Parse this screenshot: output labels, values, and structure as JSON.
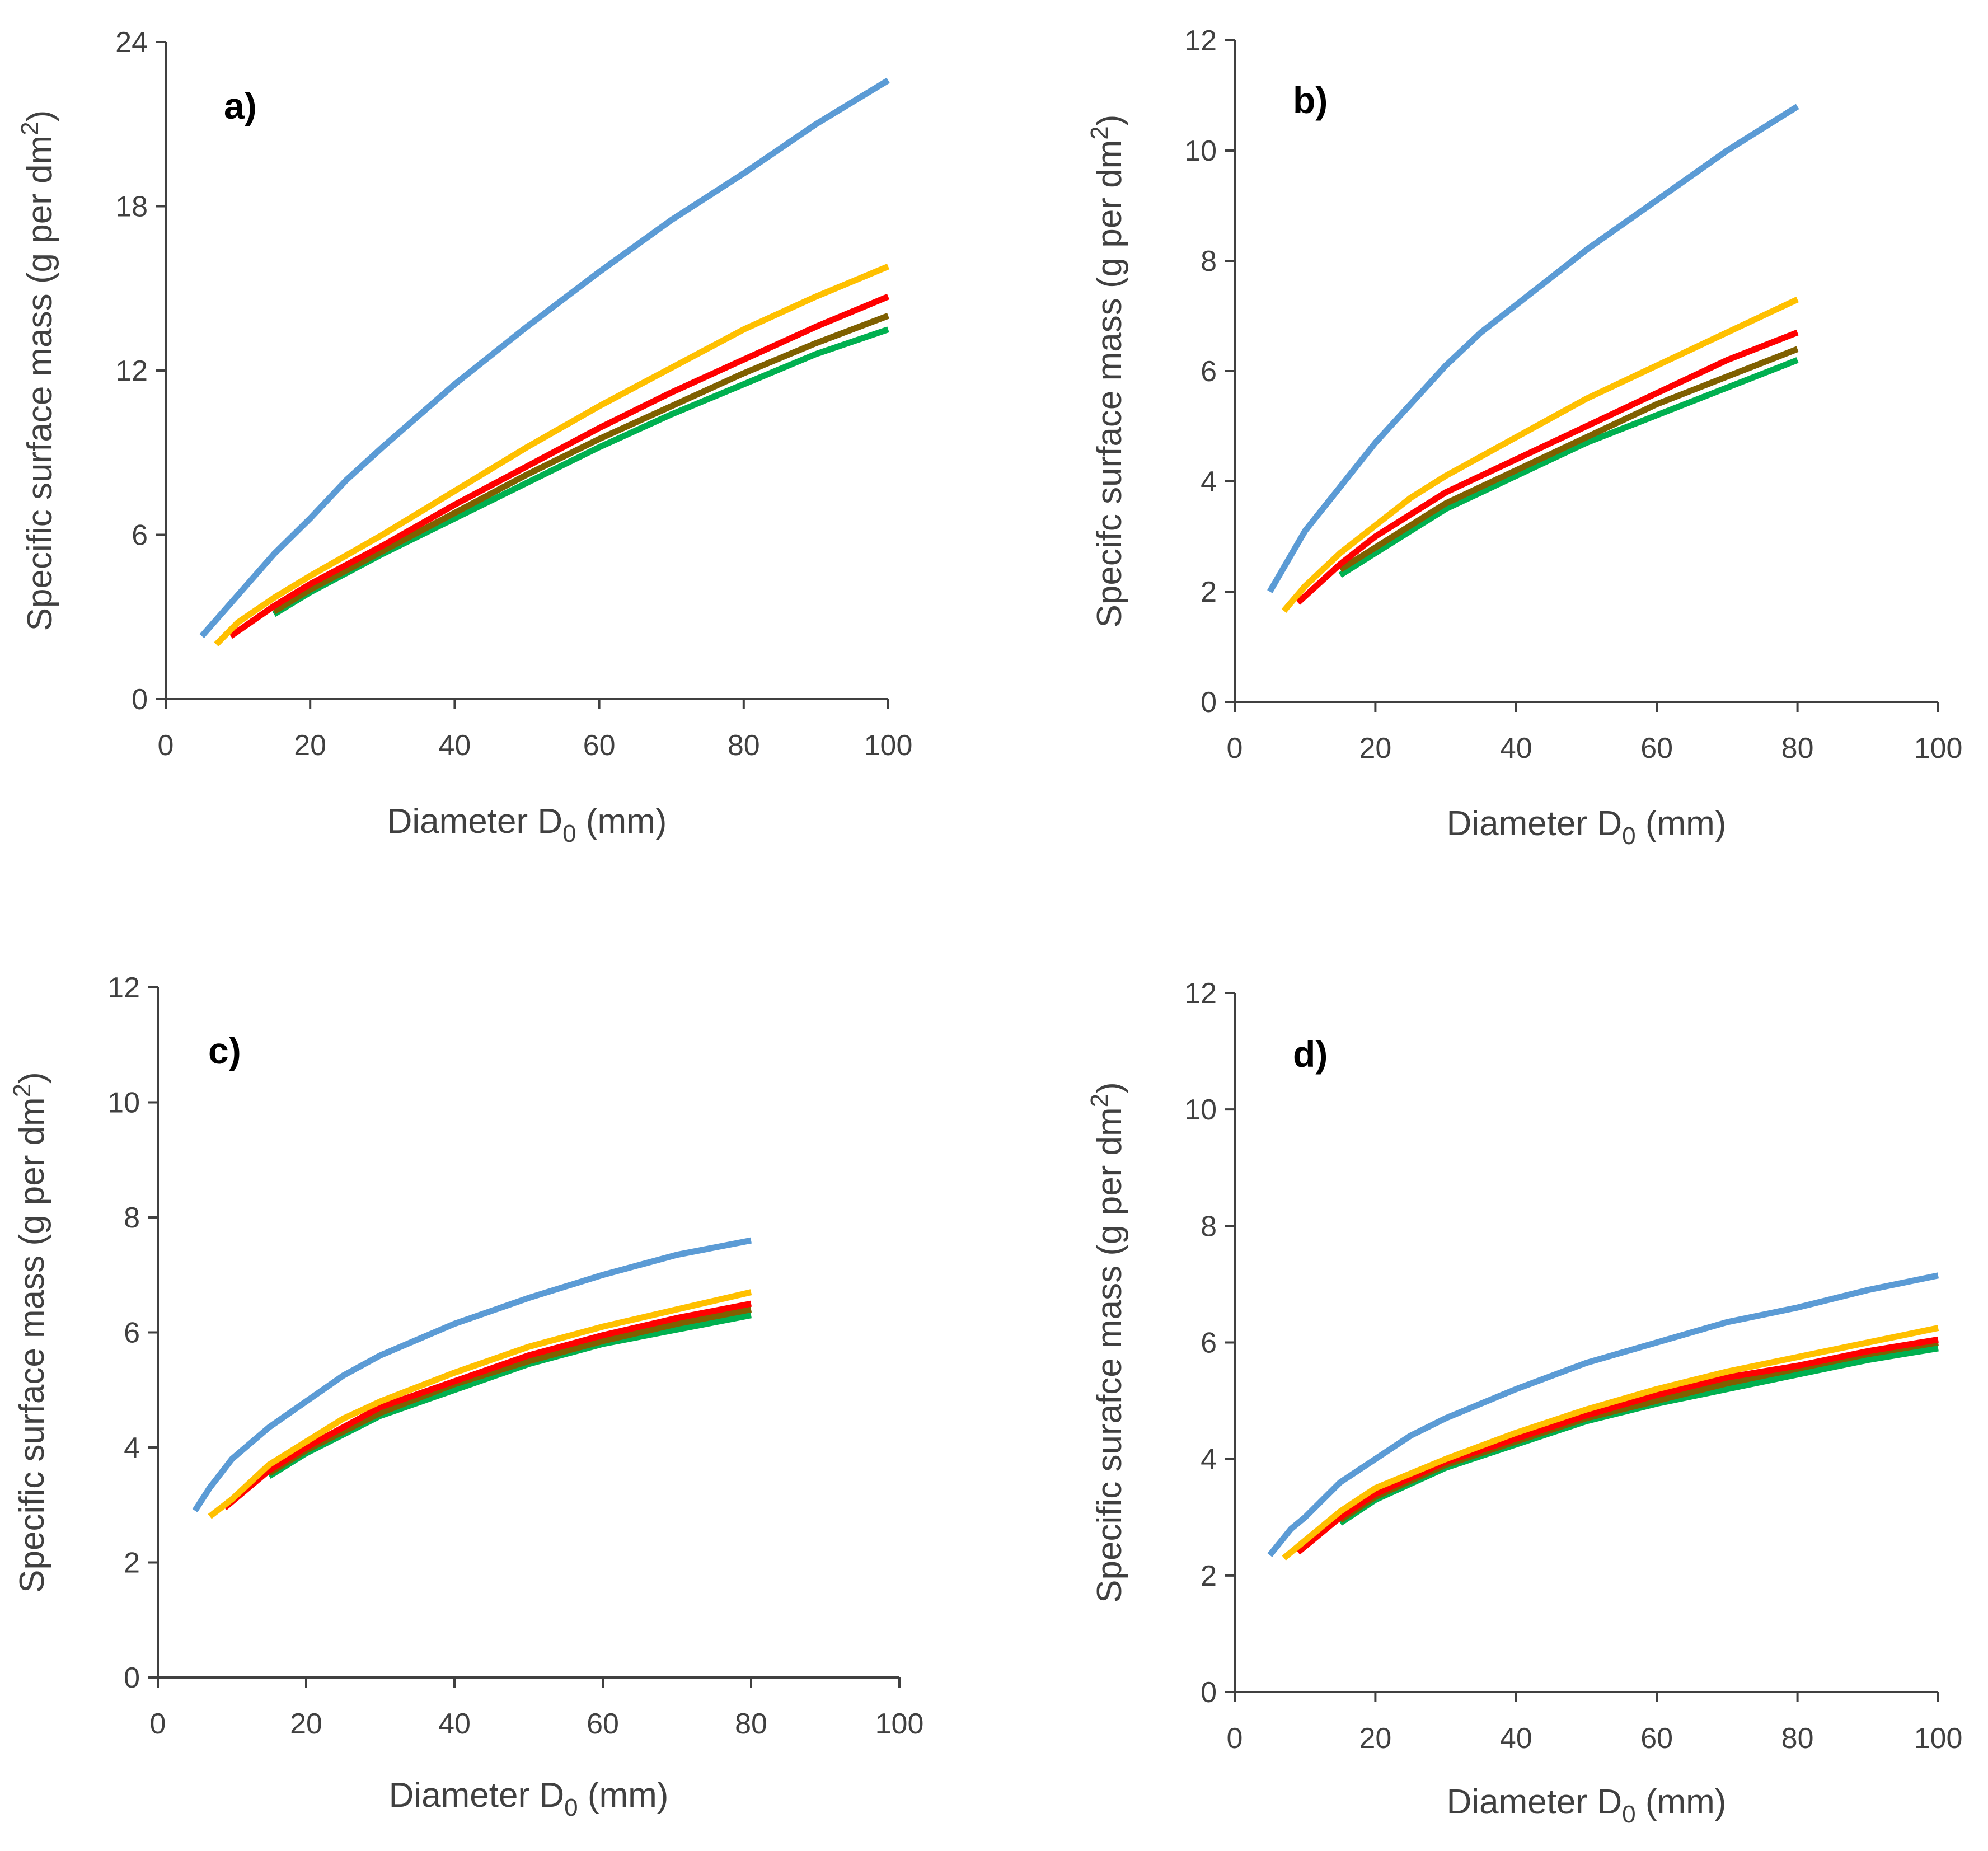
{
  "colors": {
    "blue": "#5b9bd5",
    "yellow": "#ffc000",
    "red": "#ff0000",
    "brown": "#7f6000",
    "green": "#00b050",
    "axis": "#404040"
  },
  "chart_data": [
    {
      "type": "line",
      "panel_label": "a)",
      "xlabel_main": "Diameter D",
      "xlabel_sub": "0",
      "xlabel_unit": " (mm)",
      "ylabel_main": "Specific surface  mass (g per dm",
      "ylabel_sup": "2",
      "ylabel_end": ")",
      "xlim": [
        0,
        100
      ],
      "ylim": [
        0,
        24
      ],
      "xticks": [
        0,
        20,
        40,
        60,
        80,
        100
      ],
      "yticks": [
        0,
        6,
        12,
        18,
        24
      ],
      "series": [
        {
          "name": "blue",
          "color": "#5b9bd5",
          "x": [
            5,
            10,
            15,
            20,
            25,
            30,
            40,
            50,
            60,
            70,
            80,
            90,
            100
          ],
          "y": [
            2.3,
            3.8,
            5.3,
            6.6,
            8.0,
            9.2,
            11.5,
            13.6,
            15.6,
            17.5,
            19.2,
            21.0,
            22.6
          ]
        },
        {
          "name": "yellow",
          "color": "#ffc000",
          "x": [
            7,
            10,
            15,
            20,
            30,
            40,
            50,
            60,
            70,
            80,
            90,
            100
          ],
          "y": [
            2.0,
            2.8,
            3.7,
            4.5,
            6.0,
            7.6,
            9.2,
            10.7,
            12.1,
            13.5,
            14.7,
            15.8
          ]
        },
        {
          "name": "red",
          "color": "#ff0000",
          "x": [
            9,
            15,
            20,
            30,
            40,
            50,
            60,
            70,
            80,
            90,
            100
          ],
          "y": [
            2.3,
            3.4,
            4.2,
            5.6,
            7.1,
            8.5,
            9.9,
            11.2,
            12.4,
            13.6,
            14.7
          ]
        },
        {
          "name": "brown",
          "color": "#7f6000",
          "x": [
            15,
            20,
            30,
            40,
            50,
            60,
            70,
            80,
            90,
            100
          ],
          "y": [
            3.2,
            4.0,
            5.4,
            6.8,
            8.2,
            9.5,
            10.7,
            11.9,
            13.0,
            14.0
          ]
        },
        {
          "name": "green",
          "color": "#00b050",
          "x": [
            15,
            20,
            30,
            40,
            50,
            60,
            70,
            80,
            90,
            100
          ],
          "y": [
            3.1,
            3.9,
            5.3,
            6.6,
            7.9,
            9.2,
            10.4,
            11.5,
            12.6,
            13.5
          ]
        }
      ]
    },
    {
      "type": "line",
      "panel_label": "b)",
      "xlabel_main": "Diameter D",
      "xlabel_sub": "0",
      "xlabel_unit": " (mm)",
      "ylabel_main": "Specifc surface  mass (g per dm",
      "ylabel_sup": "2",
      "ylabel_end": ")",
      "xlim": [
        0,
        100
      ],
      "ylim": [
        0,
        12
      ],
      "xticks": [
        0,
        20,
        40,
        60,
        80,
        100
      ],
      "yticks": [
        0,
        2,
        4,
        6,
        8,
        10,
        12
      ],
      "series": [
        {
          "name": "blue",
          "color": "#5b9bd5",
          "x": [
            5,
            10,
            15,
            20,
            25,
            30,
            35,
            40,
            50,
            60,
            70,
            80
          ],
          "y": [
            2.0,
            3.1,
            3.9,
            4.7,
            5.4,
            6.1,
            6.7,
            7.2,
            8.2,
            9.1,
            10.0,
            10.8
          ]
        },
        {
          "name": "yellow",
          "color": "#ffc000",
          "x": [
            7,
            10,
            15,
            20,
            25,
            30,
            40,
            50,
            60,
            70,
            80
          ],
          "y": [
            1.65,
            2.1,
            2.7,
            3.2,
            3.7,
            4.1,
            4.8,
            5.5,
            6.1,
            6.7,
            7.3
          ]
        },
        {
          "name": "red",
          "color": "#ff0000",
          "x": [
            9,
            15,
            20,
            30,
            40,
            50,
            60,
            70,
            80
          ],
          "y": [
            1.8,
            2.5,
            3.0,
            3.8,
            4.4,
            5.0,
            5.6,
            6.2,
            6.7
          ]
        },
        {
          "name": "brown",
          "color": "#7f6000",
          "x": [
            15,
            20,
            30,
            40,
            50,
            60,
            70,
            80
          ],
          "y": [
            2.4,
            2.8,
            3.6,
            4.2,
            4.8,
            5.4,
            5.9,
            6.4
          ]
        },
        {
          "name": "green",
          "color": "#00b050",
          "x": [
            15,
            20,
            30,
            40,
            50,
            60,
            70,
            80
          ],
          "y": [
            2.3,
            2.7,
            3.5,
            4.1,
            4.7,
            5.2,
            5.7,
            6.2
          ]
        }
      ]
    },
    {
      "type": "line",
      "panel_label": "c)",
      "xlabel_main": "Diameter D",
      "xlabel_sub": "0",
      "xlabel_unit": " (mm)",
      "ylabel_main": "Specific surface  mass (g per dm",
      "ylabel_sup": "2",
      "ylabel_end": ")",
      "xlim": [
        0,
        100
      ],
      "ylim": [
        0,
        12
      ],
      "xticks": [
        0,
        20,
        40,
        60,
        80,
        100
      ],
      "yticks": [
        0,
        2,
        4,
        6,
        8,
        10,
        12
      ],
      "series": [
        {
          "name": "blue",
          "color": "#5b9bd5",
          "x": [
            5,
            7,
            10,
            15,
            20,
            25,
            30,
            40,
            50,
            60,
            70,
            80
          ],
          "y": [
            2.9,
            3.3,
            3.8,
            4.35,
            4.8,
            5.25,
            5.6,
            6.15,
            6.6,
            7.0,
            7.35,
            7.6
          ]
        },
        {
          "name": "yellow",
          "color": "#ffc000",
          "x": [
            7,
            10,
            15,
            20,
            25,
            30,
            40,
            50,
            60,
            70,
            80
          ],
          "y": [
            2.8,
            3.1,
            3.7,
            4.1,
            4.5,
            4.8,
            5.3,
            5.75,
            6.1,
            6.4,
            6.7
          ]
        },
        {
          "name": "red",
          "color": "#ff0000",
          "x": [
            9,
            15,
            20,
            30,
            40,
            50,
            60,
            70,
            80
          ],
          "y": [
            2.95,
            3.6,
            4.0,
            4.7,
            5.15,
            5.6,
            5.95,
            6.25,
            6.5
          ]
        },
        {
          "name": "brown",
          "color": "#7f6000",
          "x": [
            15,
            20,
            30,
            40,
            50,
            60,
            70,
            80
          ],
          "y": [
            3.55,
            3.95,
            4.6,
            5.1,
            5.5,
            5.85,
            6.15,
            6.4
          ]
        },
        {
          "name": "green",
          "color": "#00b050",
          "x": [
            15,
            20,
            30,
            40,
            50,
            60,
            70,
            80
          ],
          "y": [
            3.5,
            3.9,
            4.55,
            5.0,
            5.45,
            5.8,
            6.05,
            6.3
          ]
        }
      ]
    },
    {
      "type": "line",
      "panel_label": "d)",
      "xlabel_main": "Diameter D",
      "xlabel_sub": "0",
      "xlabel_unit": " (mm)",
      "ylabel_main": "Specific surafce mass (g per dm",
      "ylabel_sup": "2",
      "ylabel_end": ")",
      "xlim": [
        0,
        100
      ],
      "ylim": [
        0,
        12
      ],
      "xticks": [
        0,
        20,
        40,
        60,
        80,
        100
      ],
      "yticks": [
        0,
        2,
        4,
        6,
        8,
        10,
        12
      ],
      "series": [
        {
          "name": "blue",
          "color": "#5b9bd5",
          "x": [
            5,
            8,
            10,
            15,
            20,
            25,
            30,
            40,
            50,
            60,
            70,
            80,
            90,
            100
          ],
          "y": [
            2.35,
            2.8,
            3.0,
            3.6,
            4.0,
            4.4,
            4.7,
            5.2,
            5.65,
            6.0,
            6.35,
            6.6,
            6.9,
            7.15
          ]
        },
        {
          "name": "yellow",
          "color": "#ffc000",
          "x": [
            7,
            10,
            15,
            20,
            30,
            40,
            50,
            60,
            70,
            80,
            90,
            100
          ],
          "y": [
            2.3,
            2.6,
            3.1,
            3.5,
            4.0,
            4.45,
            4.85,
            5.2,
            5.5,
            5.75,
            6.0,
            6.25
          ]
        },
        {
          "name": "red",
          "color": "#ff0000",
          "x": [
            9,
            15,
            20,
            30,
            40,
            50,
            60,
            70,
            80,
            90,
            100
          ],
          "y": [
            2.4,
            3.0,
            3.4,
            3.95,
            4.35,
            4.75,
            5.1,
            5.4,
            5.6,
            5.85,
            6.05
          ]
        },
        {
          "name": "brown",
          "color": "#7f6000",
          "x": [
            15,
            20,
            30,
            40,
            50,
            60,
            70,
            80,
            90,
            100
          ],
          "y": [
            2.95,
            3.35,
            3.9,
            4.3,
            4.7,
            5.0,
            5.3,
            5.55,
            5.8,
            6.0
          ]
        },
        {
          "name": "green",
          "color": "#00b050",
          "x": [
            15,
            20,
            30,
            40,
            50,
            60,
            70,
            80,
            90,
            100
          ],
          "y": [
            2.9,
            3.3,
            3.85,
            4.25,
            4.65,
            4.95,
            5.2,
            5.45,
            5.7,
            5.9
          ]
        }
      ]
    }
  ]
}
